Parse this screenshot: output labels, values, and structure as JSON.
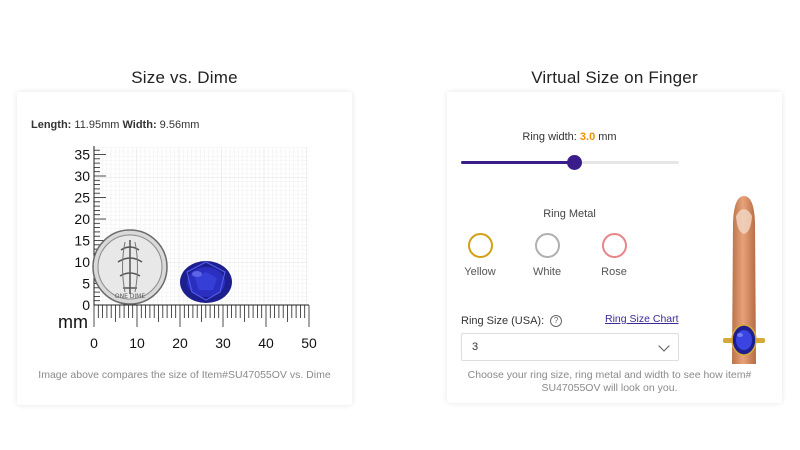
{
  "left": {
    "title": "Size vs. Dime",
    "length_label": "Length:",
    "length_value": "11.95mm",
    "width_label": "Width:",
    "width_value": "9.56mm",
    "unit": "mm",
    "vertical_ticks": [
      "35",
      "30",
      "25",
      "20",
      "15",
      "10",
      "5",
      "0"
    ],
    "horizontal_ticks": [
      "0",
      "10",
      "20",
      "30",
      "40",
      "50"
    ],
    "caption": "Image above compares the size of Item#SU47055OV vs. Dime",
    "dime_icon": "dime-coin-icon",
    "gem_icon": "oval-sapphire-icon"
  },
  "right": {
    "title": "Virtual Size on Finger",
    "ring_width_label": "Ring width:",
    "ring_width_value": "3.0",
    "ring_width_unit": "mm",
    "ring_width_fraction": 0.52,
    "metal_label": "Ring Metal",
    "metals": [
      {
        "name": "Yellow",
        "color": "#d4a017"
      },
      {
        "name": "White",
        "color": "#b0b0b0"
      },
      {
        "name": "Rose",
        "color": "#e7868a"
      }
    ],
    "size_label": "Ring Size (USA):",
    "help_icon": "question-circle-icon",
    "size_chart_link": "Ring Size Chart",
    "size_value": "3",
    "help_text": "Choose your ring size, ring metal and width to see how item# SU47055OV will look on you.",
    "finger_icon": "finger-with-ring-icon"
  },
  "colors": {
    "accent": "#3a1d8a",
    "highlight": "#f29000",
    "link": "#3d2a9a"
  }
}
